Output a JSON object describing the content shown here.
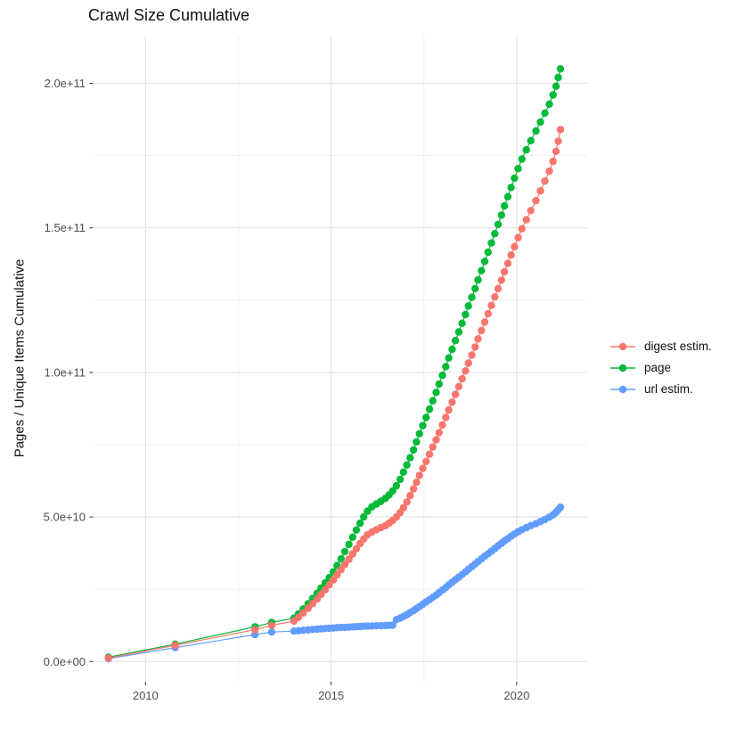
{
  "title": "Crawl Size Cumulative",
  "chart_data": {
    "type": "scatter",
    "title": "Crawl Size Cumulative",
    "xlabel": "",
    "ylabel": "Pages / Unique Items Cumulative",
    "grid": true,
    "legend_position": "right",
    "background": "#ffffff",
    "major_grid_color": "#e3e3e3",
    "minor_grid_color": "#f1f1f1",
    "tick_label_color": "#4d4d4d",
    "xlim": [
      2008.6,
      2021.9
    ],
    "ylim_e9": [
      -7,
      216.5
    ],
    "x_ticks": [
      {
        "value": 2010,
        "label": "2010"
      },
      {
        "value": 2015,
        "label": "2015"
      },
      {
        "value": 2020,
        "label": "2020"
      }
    ],
    "x_minor": [
      2012.5,
      2017.5
    ],
    "y_ticks": [
      {
        "value_e9": 0,
        "label": "0.0e+00"
      },
      {
        "value_e9": 50,
        "label": "5.0e+10"
      },
      {
        "value_e9": 100,
        "label": "1.0e+11"
      },
      {
        "value_e9": 150,
        "label": "1.5e+11"
      },
      {
        "value_e9": 200,
        "label": "2.0e+11"
      }
    ],
    "y_minor_e9": [
      25,
      75,
      125,
      175
    ],
    "series": [
      {
        "name": "digest estim.",
        "color": "#F8766D",
        "points_year_value_e9": [
          [
            2009.0,
            1.2
          ],
          [
            2010.8,
            5.6
          ],
          [
            2012.95,
            11.0
          ],
          [
            2013.4,
            12.5
          ],
          [
            2014.0,
            14.0
          ],
          [
            2014.12,
            15.3
          ],
          [
            2014.25,
            16.8
          ],
          [
            2014.38,
            18.4
          ],
          [
            2014.5,
            20.0
          ],
          [
            2014.62,
            21.6
          ],
          [
            2014.73,
            23.2
          ],
          [
            2014.84,
            24.8
          ],
          [
            2014.95,
            26.5
          ],
          [
            2015.06,
            28.2
          ],
          [
            2015.16,
            30.0
          ],
          [
            2015.27,
            31.8
          ],
          [
            2015.37,
            33.6
          ],
          [
            2015.48,
            35.4
          ],
          [
            2015.58,
            37.2
          ],
          [
            2015.68,
            39.0
          ],
          [
            2015.78,
            40.8
          ],
          [
            2015.88,
            42.4
          ],
          [
            2015.98,
            43.8
          ],
          [
            2016.1,
            44.8
          ],
          [
            2016.22,
            45.6
          ],
          [
            2016.34,
            46.3
          ],
          [
            2016.46,
            47.0
          ],
          [
            2016.56,
            47.8
          ],
          [
            2016.66,
            48.8
          ],
          [
            2016.76,
            50.0
          ],
          [
            2016.86,
            51.5
          ],
          [
            2016.95,
            53.2
          ],
          [
            2017.04,
            55.2
          ],
          [
            2017.13,
            57.4
          ],
          [
            2017.22,
            59.7
          ],
          [
            2017.3,
            62.0
          ],
          [
            2017.38,
            64.4
          ],
          [
            2017.47,
            66.8
          ],
          [
            2017.56,
            69.2
          ],
          [
            2017.65,
            71.7
          ],
          [
            2017.74,
            74.2
          ],
          [
            2017.83,
            76.7
          ],
          [
            2017.91,
            79.2
          ],
          [
            2018.0,
            81.8
          ],
          [
            2018.09,
            84.4
          ],
          [
            2018.17,
            87.0
          ],
          [
            2018.26,
            89.7
          ],
          [
            2018.35,
            92.4
          ],
          [
            2018.44,
            95.1
          ],
          [
            2018.53,
            97.8
          ],
          [
            2018.62,
            100.5
          ],
          [
            2018.7,
            103.2
          ],
          [
            2018.79,
            106.0
          ],
          [
            2018.88,
            108.8
          ],
          [
            2018.96,
            111.6
          ],
          [
            2019.05,
            114.5
          ],
          [
            2019.14,
            117.4
          ],
          [
            2019.23,
            120.3
          ],
          [
            2019.32,
            123.2
          ],
          [
            2019.41,
            126.1
          ],
          [
            2019.5,
            129.0
          ],
          [
            2019.59,
            131.9
          ],
          [
            2019.67,
            134.8
          ],
          [
            2019.76,
            137.7
          ],
          [
            2019.85,
            140.6
          ],
          [
            2019.94,
            143.5
          ],
          [
            2020.04,
            146.6
          ],
          [
            2020.14,
            149.7
          ],
          [
            2020.26,
            152.8
          ],
          [
            2020.38,
            156.0
          ],
          [
            2020.52,
            159.4
          ],
          [
            2020.64,
            162.8
          ],
          [
            2020.76,
            166.2
          ],
          [
            2020.88,
            169.6
          ],
          [
            2020.98,
            173.0
          ],
          [
            2021.06,
            176.5
          ],
          [
            2021.12,
            180.0
          ],
          [
            2021.18,
            184.0
          ]
        ]
      },
      {
        "name": "page",
        "color": "#00BA38",
        "points_year_value_e9": [
          [
            2009.0,
            1.5
          ],
          [
            2010.8,
            6.0
          ],
          [
            2012.95,
            12.0
          ],
          [
            2013.4,
            13.5
          ],
          [
            2014.0,
            15.0
          ],
          [
            2014.12,
            16.5
          ],
          [
            2014.25,
            18.2
          ],
          [
            2014.38,
            20.0
          ],
          [
            2014.5,
            21.8
          ],
          [
            2014.62,
            23.6
          ],
          [
            2014.73,
            25.4
          ],
          [
            2014.84,
            27.2
          ],
          [
            2014.95,
            29.0
          ],
          [
            2015.06,
            31.0
          ],
          [
            2015.16,
            33.2
          ],
          [
            2015.27,
            35.5
          ],
          [
            2015.37,
            38.0
          ],
          [
            2015.48,
            40.5
          ],
          [
            2015.58,
            43.0
          ],
          [
            2015.68,
            45.5
          ],
          [
            2015.78,
            47.8
          ],
          [
            2015.88,
            50.0
          ],
          [
            2015.98,
            52.0
          ],
          [
            2016.1,
            53.5
          ],
          [
            2016.22,
            54.5
          ],
          [
            2016.34,
            55.4
          ],
          [
            2016.46,
            56.4
          ],
          [
            2016.56,
            57.6
          ],
          [
            2016.66,
            59.0
          ],
          [
            2016.76,
            60.8
          ],
          [
            2016.86,
            63.0
          ],
          [
            2016.95,
            65.5
          ],
          [
            2017.04,
            68.0
          ],
          [
            2017.13,
            70.5
          ],
          [
            2017.22,
            73.2
          ],
          [
            2017.3,
            76.0
          ],
          [
            2017.38,
            78.8
          ],
          [
            2017.47,
            81.6
          ],
          [
            2017.56,
            84.4
          ],
          [
            2017.65,
            87.3
          ],
          [
            2017.74,
            90.2
          ],
          [
            2017.83,
            93.1
          ],
          [
            2017.91,
            96.0
          ],
          [
            2018.0,
            99.0
          ],
          [
            2018.09,
            102.0
          ],
          [
            2018.17,
            105.0
          ],
          [
            2018.26,
            108.0
          ],
          [
            2018.35,
            111.0
          ],
          [
            2018.44,
            114.0
          ],
          [
            2018.53,
            117.0
          ],
          [
            2018.62,
            120.0
          ],
          [
            2018.7,
            123.0
          ],
          [
            2018.79,
            126.0
          ],
          [
            2018.88,
            129.0
          ],
          [
            2018.96,
            132.0
          ],
          [
            2019.05,
            135.2
          ],
          [
            2019.14,
            138.4
          ],
          [
            2019.23,
            141.6
          ],
          [
            2019.32,
            144.8
          ],
          [
            2019.41,
            148.0
          ],
          [
            2019.5,
            151.2
          ],
          [
            2019.59,
            154.4
          ],
          [
            2019.67,
            157.6
          ],
          [
            2019.76,
            160.8
          ],
          [
            2019.85,
            164.0
          ],
          [
            2019.94,
            167.2
          ],
          [
            2020.04,
            170.5
          ],
          [
            2020.14,
            173.8
          ],
          [
            2020.26,
            177.0
          ],
          [
            2020.38,
            180.2
          ],
          [
            2020.52,
            183.5
          ],
          [
            2020.64,
            186.6
          ],
          [
            2020.76,
            189.7
          ],
          [
            2020.88,
            192.8
          ],
          [
            2020.98,
            196.0
          ],
          [
            2021.06,
            199.0
          ],
          [
            2021.12,
            202.0
          ],
          [
            2021.18,
            205.0
          ]
        ]
      },
      {
        "name": "url estim.",
        "color": "#619CFF",
        "points_year_value_e9": [
          [
            2009.0,
            1.0
          ],
          [
            2010.8,
            4.8
          ],
          [
            2012.95,
            9.3
          ],
          [
            2013.4,
            10.2
          ],
          [
            2014.0,
            10.5
          ],
          [
            2014.12,
            10.65
          ],
          [
            2014.25,
            10.8
          ],
          [
            2014.38,
            10.95
          ],
          [
            2014.5,
            11.1
          ],
          [
            2014.62,
            11.2
          ],
          [
            2014.73,
            11.3
          ],
          [
            2014.84,
            11.4
          ],
          [
            2014.95,
            11.5
          ],
          [
            2015.06,
            11.6
          ],
          [
            2015.16,
            11.7
          ],
          [
            2015.27,
            11.8
          ],
          [
            2015.37,
            11.85
          ],
          [
            2015.48,
            11.9
          ],
          [
            2015.58,
            12.0
          ],
          [
            2015.68,
            12.05
          ],
          [
            2015.78,
            12.1
          ],
          [
            2015.88,
            12.2
          ],
          [
            2015.98,
            12.25
          ],
          [
            2016.1,
            12.3
          ],
          [
            2016.22,
            12.35
          ],
          [
            2016.34,
            12.4
          ],
          [
            2016.46,
            12.45
          ],
          [
            2016.56,
            12.5
          ],
          [
            2016.66,
            12.55
          ],
          [
            2016.76,
            14.5
          ],
          [
            2016.86,
            15.0
          ],
          [
            2016.95,
            15.6
          ],
          [
            2017.04,
            16.2
          ],
          [
            2017.13,
            16.9
          ],
          [
            2017.22,
            17.6
          ],
          [
            2017.3,
            18.3
          ],
          [
            2017.38,
            19.0
          ],
          [
            2017.47,
            19.8
          ],
          [
            2017.56,
            20.6
          ],
          [
            2017.65,
            21.4
          ],
          [
            2017.74,
            22.2
          ],
          [
            2017.83,
            23.0
          ],
          [
            2017.91,
            23.8
          ],
          [
            2018.0,
            24.7
          ],
          [
            2018.09,
            25.6
          ],
          [
            2018.17,
            26.5
          ],
          [
            2018.26,
            27.4
          ],
          [
            2018.35,
            28.3
          ],
          [
            2018.44,
            29.2
          ],
          [
            2018.53,
            30.1
          ],
          [
            2018.62,
            31.0
          ],
          [
            2018.7,
            31.9
          ],
          [
            2018.79,
            32.8
          ],
          [
            2018.88,
            33.7
          ],
          [
            2018.96,
            34.6
          ],
          [
            2019.05,
            35.5
          ],
          [
            2019.14,
            36.4
          ],
          [
            2019.23,
            37.3
          ],
          [
            2019.32,
            38.2
          ],
          [
            2019.41,
            39.1
          ],
          [
            2019.5,
            40.0
          ],
          [
            2019.59,
            40.9
          ],
          [
            2019.67,
            41.7
          ],
          [
            2019.76,
            42.5
          ],
          [
            2019.85,
            43.3
          ],
          [
            2019.94,
            44.1
          ],
          [
            2020.04,
            44.9
          ],
          [
            2020.14,
            45.6
          ],
          [
            2020.26,
            46.3
          ],
          [
            2020.38,
            47.0
          ],
          [
            2020.52,
            47.7
          ],
          [
            2020.64,
            48.4
          ],
          [
            2020.76,
            49.1
          ],
          [
            2020.88,
            49.9
          ],
          [
            2020.98,
            50.7
          ],
          [
            2021.06,
            51.6
          ],
          [
            2021.12,
            52.5
          ],
          [
            2021.18,
            53.4
          ]
        ]
      }
    ]
  }
}
